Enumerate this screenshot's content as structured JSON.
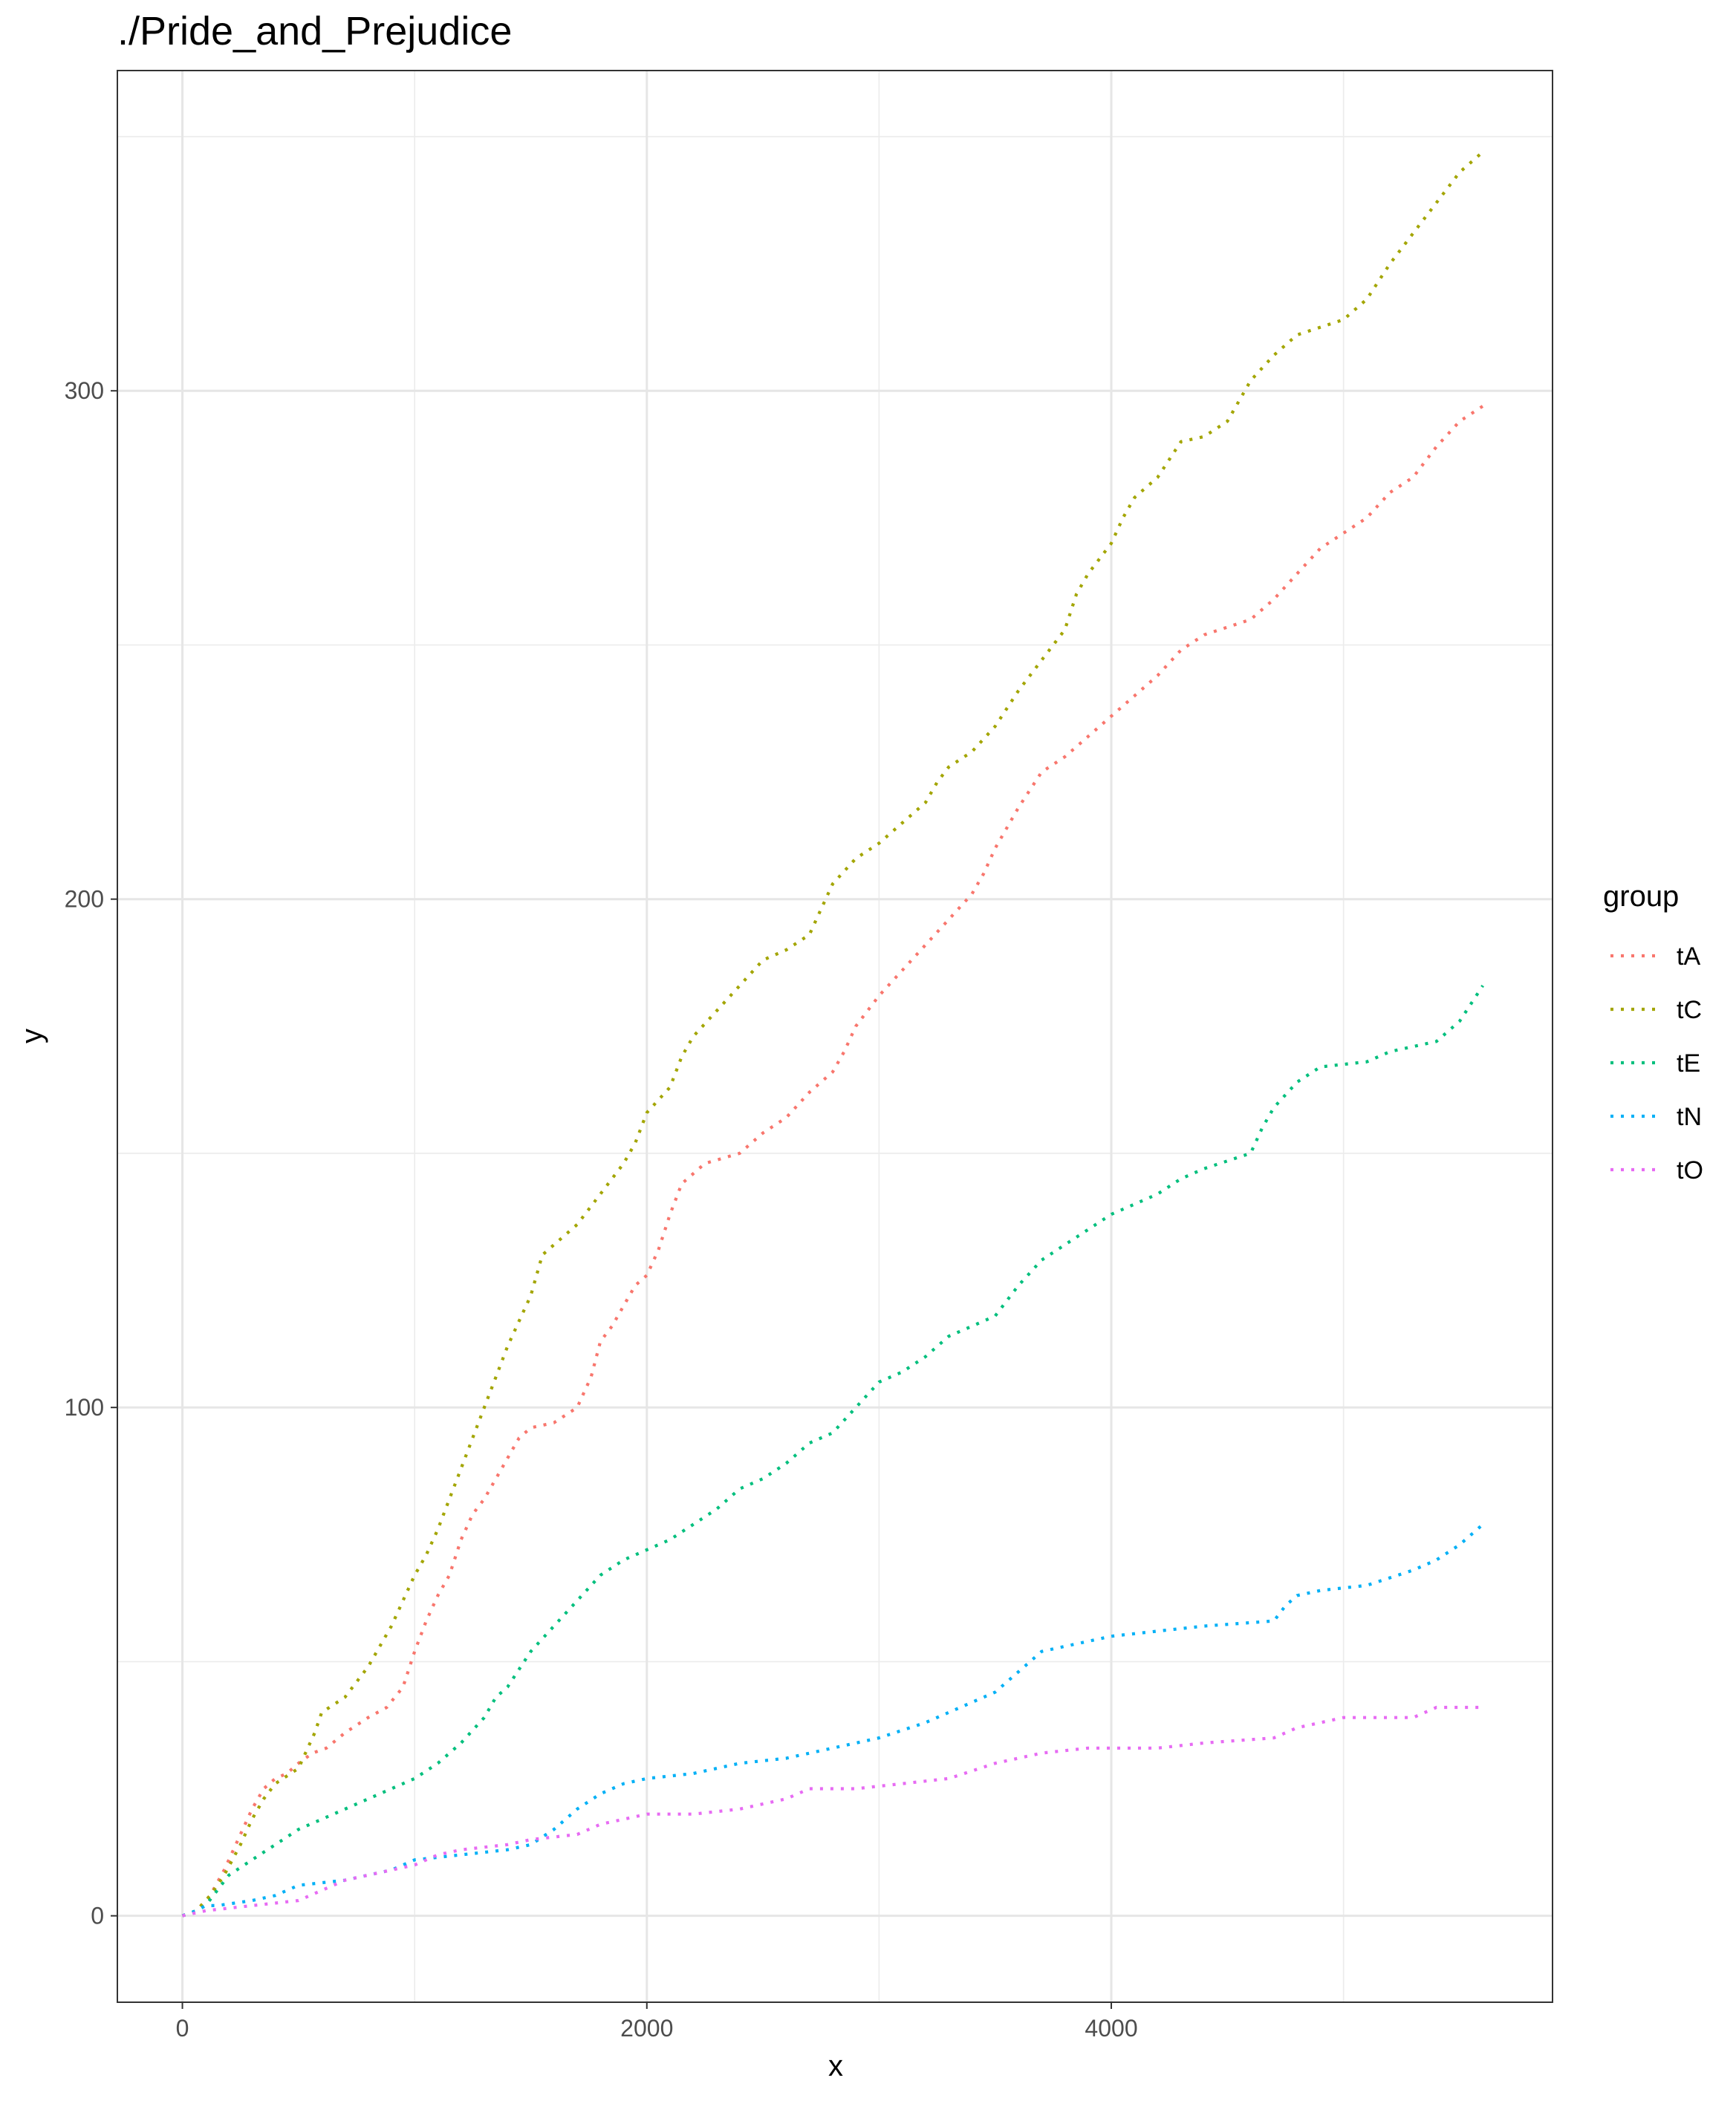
{
  "chart_data": {
    "type": "line",
    "title": "./Pride_and_Prejudice",
    "xlabel": "x",
    "ylabel": "y",
    "xlim": [
      -280,
      5900
    ],
    "ylim": [
      -17,
      363
    ],
    "x_ticks": [
      0,
      2000,
      4000
    ],
    "x_tick_labels": [
      "0",
      "2000",
      "4000"
    ],
    "x_minor_ticks": [
      1000,
      3000,
      5000
    ],
    "y_ticks": [
      0,
      100,
      200,
      300
    ],
    "y_tick_labels": [
      "0",
      "100",
      "200",
      "300"
    ],
    "y_minor_ticks": [
      50,
      150,
      250,
      350
    ],
    "grid": true,
    "legend": {
      "title": "group",
      "position": "right"
    },
    "line_style": "dotted",
    "series": [
      {
        "name": "tA",
        "color": "#F8766D",
        "points": [
          [
            0,
            0
          ],
          [
            60,
            1
          ],
          [
            120,
            4
          ],
          [
            180,
            9
          ],
          [
            250,
            16
          ],
          [
            300,
            21
          ],
          [
            350,
            25
          ],
          [
            400,
            27
          ],
          [
            450,
            28
          ],
          [
            500,
            30
          ],
          [
            560,
            32
          ],
          [
            620,
            33
          ],
          [
            700,
            36
          ],
          [
            800,
            39
          ],
          [
            880,
            41
          ],
          [
            950,
            45
          ],
          [
            1000,
            52
          ],
          [
            1050,
            58
          ],
          [
            1100,
            63
          ],
          [
            1150,
            67
          ],
          [
            1200,
            74
          ],
          [
            1250,
            79
          ],
          [
            1300,
            82
          ],
          [
            1350,
            86
          ],
          [
            1400,
            90
          ],
          [
            1450,
            94
          ],
          [
            1500,
            96
          ],
          [
            1600,
            97
          ],
          [
            1700,
            100
          ],
          [
            1760,
            106
          ],
          [
            1800,
            113
          ],
          [
            1850,
            116
          ],
          [
            1900,
            120
          ],
          [
            1950,
            124
          ],
          [
            2000,
            126
          ],
          [
            2050,
            131
          ],
          [
            2100,
            138
          ],
          [
            2150,
            144
          ],
          [
            2250,
            148
          ],
          [
            2400,
            150
          ],
          [
            2500,
            154
          ],
          [
            2600,
            157
          ],
          [
            2700,
            162
          ],
          [
            2800,
            166
          ],
          [
            2850,
            170
          ],
          [
            2900,
            175
          ],
          [
            3000,
            181
          ],
          [
            3100,
            186
          ],
          [
            3200,
            191
          ],
          [
            3300,
            196
          ],
          [
            3400,
            201
          ],
          [
            3450,
            205
          ],
          [
            3500,
            210
          ],
          [
            3600,
            218
          ],
          [
            3700,
            225
          ],
          [
            3800,
            228
          ],
          [
            3900,
            232
          ],
          [
            4000,
            236
          ],
          [
            4100,
            240
          ],
          [
            4200,
            244
          ],
          [
            4300,
            249
          ],
          [
            4400,
            252
          ],
          [
            4600,
            255
          ],
          [
            4700,
            259
          ],
          [
            4800,
            264
          ],
          [
            4900,
            269
          ],
          [
            5000,
            272
          ],
          [
            5100,
            275
          ],
          [
            5200,
            280
          ],
          [
            5300,
            283
          ],
          [
            5400,
            289
          ],
          [
            5500,
            294
          ],
          [
            5600,
            297
          ]
        ]
      },
      {
        "name": "tC",
        "color": "#A3A500",
        "points": [
          [
            0,
            0
          ],
          [
            60,
            1
          ],
          [
            120,
            4
          ],
          [
            180,
            8
          ],
          [
            250,
            14
          ],
          [
            300,
            19
          ],
          [
            350,
            23
          ],
          [
            400,
            26
          ],
          [
            500,
            29
          ],
          [
            570,
            36
          ],
          [
            600,
            40
          ],
          [
            700,
            43
          ],
          [
            800,
            49
          ],
          [
            900,
            57
          ],
          [
            950,
            62
          ],
          [
            1000,
            67
          ],
          [
            1050,
            71
          ],
          [
            1100,
            76
          ],
          [
            1150,
            82
          ],
          [
            1200,
            88
          ],
          [
            1250,
            94
          ],
          [
            1300,
            100
          ],
          [
            1350,
            106
          ],
          [
            1400,
            112
          ],
          [
            1450,
            117
          ],
          [
            1500,
            122
          ],
          [
            1550,
            130
          ],
          [
            1600,
            132
          ],
          [
            1700,
            136
          ],
          [
            1800,
            142
          ],
          [
            1900,
            148
          ],
          [
            1950,
            152
          ],
          [
            2000,
            158
          ],
          [
            2100,
            163
          ],
          [
            2150,
            169
          ],
          [
            2200,
            173
          ],
          [
            2300,
            178
          ],
          [
            2400,
            183
          ],
          [
            2500,
            188
          ],
          [
            2600,
            190
          ],
          [
            2700,
            193
          ],
          [
            2750,
            198
          ],
          [
            2800,
            203
          ],
          [
            2900,
            208
          ],
          [
            3000,
            211
          ],
          [
            3100,
            215
          ],
          [
            3200,
            219
          ],
          [
            3250,
            223
          ],
          [
            3300,
            226
          ],
          [
            3400,
            229
          ],
          [
            3500,
            234
          ],
          [
            3600,
            241
          ],
          [
            3700,
            247
          ],
          [
            3800,
            253
          ],
          [
            3850,
            260
          ],
          [
            3900,
            264
          ],
          [
            4000,
            270
          ],
          [
            4050,
            275
          ],
          [
            4100,
            279
          ],
          [
            4200,
            283
          ],
          [
            4300,
            290
          ],
          [
            4400,
            291
          ],
          [
            4500,
            294
          ],
          [
            4600,
            302
          ],
          [
            4700,
            307
          ],
          [
            4800,
            311
          ],
          [
            5000,
            314
          ],
          [
            5100,
            318
          ],
          [
            5200,
            325
          ],
          [
            5300,
            331
          ],
          [
            5400,
            337
          ],
          [
            5500,
            343
          ],
          [
            5600,
            347
          ]
        ]
      },
      {
        "name": "tE",
        "color": "#00BF7D",
        "points": [
          [
            0,
            0
          ],
          [
            60,
            1
          ],
          [
            100,
            2
          ],
          [
            150,
            5
          ],
          [
            200,
            8
          ],
          [
            300,
            11
          ],
          [
            400,
            14
          ],
          [
            500,
            17
          ],
          [
            600,
            19
          ],
          [
            700,
            21
          ],
          [
            800,
            23
          ],
          [
            900,
            25
          ],
          [
            1000,
            27
          ],
          [
            1100,
            30
          ],
          [
            1200,
            34
          ],
          [
            1300,
            39
          ],
          [
            1350,
            43
          ],
          [
            1400,
            45
          ],
          [
            1500,
            52
          ],
          [
            1600,
            57
          ],
          [
            1700,
            62
          ],
          [
            1800,
            67
          ],
          [
            1900,
            70
          ],
          [
            2000,
            72
          ],
          [
            2100,
            74
          ],
          [
            2200,
            77
          ],
          [
            2300,
            80
          ],
          [
            2400,
            84
          ],
          [
            2500,
            86
          ],
          [
            2600,
            89
          ],
          [
            2700,
            93
          ],
          [
            2800,
            95
          ],
          [
            2900,
            100
          ],
          [
            3000,
            105
          ],
          [
            3100,
            107
          ],
          [
            3200,
            110
          ],
          [
            3300,
            114
          ],
          [
            3400,
            116
          ],
          [
            3500,
            118
          ],
          [
            3600,
            124
          ],
          [
            3700,
            129
          ],
          [
            3800,
            132
          ],
          [
            3900,
            135
          ],
          [
            4000,
            138
          ],
          [
            4100,
            140
          ],
          [
            4200,
            142
          ],
          [
            4300,
            145
          ],
          [
            4400,
            147
          ],
          [
            4600,
            150
          ],
          [
            4650,
            155
          ],
          [
            4700,
            159
          ],
          [
            4800,
            164
          ],
          [
            4900,
            167
          ],
          [
            5100,
            168
          ],
          [
            5200,
            170
          ],
          [
            5400,
            172
          ],
          [
            5500,
            176
          ],
          [
            5600,
            183
          ]
        ]
      },
      {
        "name": "tN",
        "color": "#00B0F6",
        "points": [
          [
            0,
            0
          ],
          [
            60,
            1
          ],
          [
            100,
            2
          ],
          [
            150,
            2
          ],
          [
            300,
            3
          ],
          [
            400,
            4
          ],
          [
            500,
            6
          ],
          [
            700,
            7
          ],
          [
            900,
            9
          ],
          [
            1000,
            11
          ],
          [
            1200,
            12
          ],
          [
            1400,
            13
          ],
          [
            1500,
            14
          ],
          [
            1600,
            17
          ],
          [
            1700,
            21
          ],
          [
            1800,
            24
          ],
          [
            1900,
            26
          ],
          [
            2000,
            27
          ],
          [
            2200,
            28
          ],
          [
            2400,
            30
          ],
          [
            2600,
            31
          ],
          [
            2800,
            33
          ],
          [
            3000,
            35
          ],
          [
            3200,
            38
          ],
          [
            3300,
            40
          ],
          [
            3400,
            42
          ],
          [
            3500,
            44
          ],
          [
            3600,
            48
          ],
          [
            3700,
            52
          ],
          [
            3900,
            54
          ],
          [
            4000,
            55
          ],
          [
            4200,
            56
          ],
          [
            4400,
            57
          ],
          [
            4700,
            58
          ],
          [
            4750,
            61
          ],
          [
            4800,
            63
          ],
          [
            4900,
            64
          ],
          [
            5100,
            65
          ],
          [
            5300,
            68
          ],
          [
            5400,
            70
          ],
          [
            5500,
            73
          ],
          [
            5600,
            77
          ]
        ]
      },
      {
        "name": "tO",
        "color": "#E76BF3",
        "points": [
          [
            0,
            0
          ],
          [
            100,
            1
          ],
          [
            300,
            2
          ],
          [
            500,
            3
          ],
          [
            600,
            5
          ],
          [
            700,
            7
          ],
          [
            900,
            9
          ],
          [
            1000,
            10
          ],
          [
            1100,
            12
          ],
          [
            1200,
            13
          ],
          [
            1400,
            14
          ],
          [
            1500,
            15
          ],
          [
            1700,
            16
          ],
          [
            1800,
            18
          ],
          [
            1900,
            19
          ],
          [
            2000,
            20
          ],
          [
            2200,
            20
          ],
          [
            2400,
            21
          ],
          [
            2600,
            23
          ],
          [
            2700,
            25
          ],
          [
            2900,
            25
          ],
          [
            3100,
            26
          ],
          [
            3300,
            27
          ],
          [
            3500,
            30
          ],
          [
            3700,
            32
          ],
          [
            3900,
            33
          ],
          [
            4200,
            33
          ],
          [
            4400,
            34
          ],
          [
            4700,
            35
          ],
          [
            4800,
            37
          ],
          [
            5000,
            39
          ],
          [
            5300,
            39
          ],
          [
            5400,
            41
          ],
          [
            5600,
            41
          ]
        ]
      }
    ]
  }
}
